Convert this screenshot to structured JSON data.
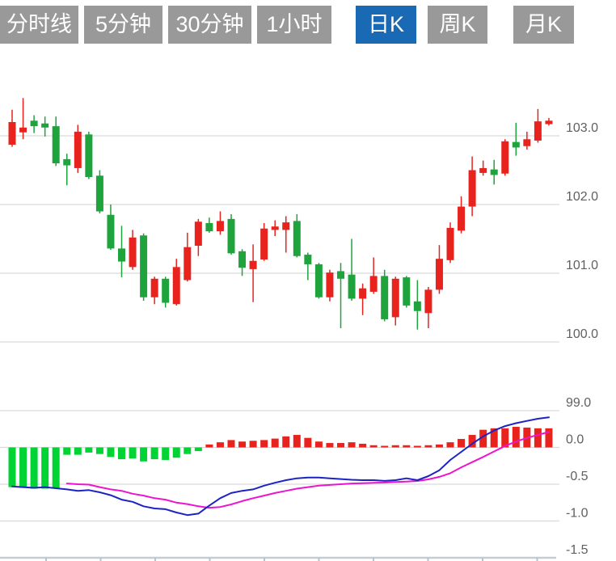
{
  "tabs": {
    "default_bg": "#999999",
    "selected_bg": "#1a69b4",
    "text_color": "#ffffff",
    "items": [
      {
        "label": "分时线",
        "selected": false
      },
      {
        "label": "5分钟",
        "selected": false
      },
      {
        "label": "30分钟",
        "selected": false
      },
      {
        "label": "1小时",
        "selected": false
      },
      {
        "label": "日K",
        "selected": true
      },
      {
        "label": "周K",
        "selected": false
      },
      {
        "label": "月K",
        "selected": false
      }
    ]
  },
  "chart_data": {
    "type": "candlestick",
    "grid_color": "#d9d9d9",
    "axis_line_color": "#c5ccd6",
    "axis_tick_color": "#b9c2cf",
    "text_color": "#606060",
    "price_panel": {
      "up_color": "#e8231e",
      "down_color": "#1fa33c",
      "axis_labels": [
        {
          "text": "103.0",
          "value": 103.0
        },
        {
          "text": "102.0",
          "value": 102.0
        },
        {
          "text": "101.0",
          "value": 101.0
        },
        {
          "text": "100.0",
          "value": 100.0
        },
        {
          "text": "99.0",
          "value": 99.0
        }
      ],
      "candles": [
        [
          102.87,
          103.38,
          102.84,
          103.2
        ],
        [
          103.05,
          103.55,
          102.95,
          103.12
        ],
        [
          103.22,
          103.3,
          103.04,
          103.14
        ],
        [
          103.18,
          103.28,
          102.99,
          103.12
        ],
        [
          103.14,
          103.28,
          102.56,
          102.6
        ],
        [
          102.66,
          102.74,
          102.28,
          102.57
        ],
        [
          102.53,
          103.16,
          102.46,
          103.06
        ],
        [
          103.02,
          103.06,
          102.37,
          102.4
        ],
        [
          102.42,
          102.5,
          101.87,
          101.9
        ],
        [
          101.85,
          102.0,
          101.34,
          101.36
        ],
        [
          101.36,
          101.69,
          100.94,
          101.17
        ],
        [
          101.09,
          101.63,
          101.05,
          101.52
        ],
        [
          101.55,
          101.58,
          100.6,
          100.65
        ],
        [
          100.65,
          100.95,
          100.55,
          100.92
        ],
        [
          100.92,
          100.95,
          100.5,
          100.57
        ],
        [
          100.55,
          101.21,
          100.53,
          101.09
        ],
        [
          100.9,
          101.59,
          100.88,
          101.38
        ],
        [
          101.4,
          101.79,
          101.25,
          101.75
        ],
        [
          101.73,
          101.81,
          101.59,
          101.61
        ],
        [
          101.61,
          101.9,
          101.56,
          101.76
        ],
        [
          101.79,
          101.86,
          101.27,
          101.29
        ],
        [
          101.32,
          101.35,
          100.96,
          101.08
        ],
        [
          101.06,
          101.42,
          100.58,
          101.18
        ],
        [
          101.2,
          101.73,
          101.18,
          101.65
        ],
        [
          101.63,
          101.77,
          101.54,
          101.68
        ],
        [
          101.63,
          101.83,
          101.3,
          101.74
        ],
        [
          101.76,
          101.86,
          101.23,
          101.25
        ],
        [
          101.27,
          101.3,
          100.9,
          101.13
        ],
        [
          101.13,
          101.15,
          100.63,
          100.65
        ],
        [
          100.65,
          101.05,
          100.59,
          101.01
        ],
        [
          101.03,
          101.15,
          100.2,
          100.92
        ],
        [
          100.98,
          101.5,
          100.6,
          100.63
        ],
        [
          100.63,
          100.85,
          100.39,
          100.78
        ],
        [
          100.73,
          101.23,
          100.7,
          100.96
        ],
        [
          100.96,
          101.05,
          100.3,
          100.33
        ],
        [
          100.36,
          100.95,
          100.24,
          100.92
        ],
        [
          100.94,
          100.96,
          100.5,
          100.53
        ],
        [
          100.59,
          100.9,
          100.18,
          100.45
        ],
        [
          100.42,
          100.8,
          100.2,
          100.76
        ],
        [
          100.76,
          101.41,
          100.7,
          101.21
        ],
        [
          101.19,
          101.74,
          101.15,
          101.66
        ],
        [
          101.62,
          102.12,
          101.58,
          101.97
        ],
        [
          101.97,
          102.7,
          101.83,
          102.5
        ],
        [
          102.46,
          102.64,
          102.42,
          102.53
        ],
        [
          102.51,
          102.65,
          102.29,
          102.43
        ],
        [
          102.45,
          102.95,
          102.42,
          102.92
        ],
        [
          102.91,
          103.19,
          102.71,
          102.83
        ],
        [
          102.85,
          103.06,
          102.8,
          102.95
        ],
        [
          102.93,
          103.39,
          102.9,
          103.21
        ],
        [
          103.17,
          103.26,
          103.15,
          103.22
        ]
      ]
    },
    "macd_panel": {
      "hist_pos_color": "#e8231e",
      "hist_neg_color": "#00d435",
      "dif_color": "#1c23c3",
      "dea_color": "#ec15cf",
      "axis_labels": [
        {
          "text": "0.0",
          "value": 0.0
        },
        {
          "text": "-0.5",
          "value": -0.5
        },
        {
          "text": "-1.0",
          "value": -1.0
        },
        {
          "text": "-1.5",
          "value": -1.5
        }
      ],
      "hist": [
        -0.54,
        -0.55,
        -0.56,
        -0.56,
        -0.55,
        -0.1,
        -0.1,
        -0.07,
        -0.09,
        -0.13,
        -0.16,
        -0.15,
        -0.19,
        -0.16,
        -0.17,
        -0.14,
        -0.09,
        -0.05,
        0.04,
        0.07,
        0.1,
        0.08,
        0.09,
        0.1,
        0.12,
        0.15,
        0.17,
        0.13,
        0.08,
        0.06,
        0.06,
        0.07,
        0.05,
        0.03,
        0.02,
        0.03,
        0.03,
        0.02,
        0.03,
        0.04,
        0.07,
        0.115,
        0.17,
        0.24,
        0.26,
        0.26,
        0.28,
        0.27,
        0.26,
        0.26
      ],
      "dif": [
        -0.53,
        -0.54,
        -0.55,
        -0.54,
        -0.555,
        -0.57,
        -0.59,
        -0.58,
        -0.61,
        -0.65,
        -0.71,
        -0.74,
        -0.8,
        -0.83,
        -0.84,
        -0.885,
        -0.92,
        -0.9,
        -0.79,
        -0.69,
        -0.62,
        -0.59,
        -0.57,
        -0.52,
        -0.48,
        -0.445,
        -0.42,
        -0.41,
        -0.41,
        -0.42,
        -0.43,
        -0.44,
        -0.445,
        -0.445,
        -0.455,
        -0.445,
        -0.42,
        -0.445,
        -0.39,
        -0.31,
        -0.17,
        -0.06,
        0.05,
        0.15,
        0.23,
        0.29,
        0.33,
        0.36,
        0.39,
        0.41
      ],
      "dea": [
        null,
        null,
        null,
        null,
        null,
        -0.49,
        -0.5,
        -0.505,
        -0.54,
        -0.57,
        -0.59,
        -0.63,
        -0.655,
        -0.69,
        -0.71,
        -0.75,
        -0.77,
        -0.8,
        -0.82,
        -0.81,
        -0.775,
        -0.73,
        -0.69,
        -0.655,
        -0.62,
        -0.59,
        -0.56,
        -0.54,
        -0.52,
        -0.51,
        -0.5,
        -0.49,
        -0.486,
        -0.48,
        -0.478,
        -0.47,
        -0.464,
        -0.456,
        -0.434,
        -0.4,
        -0.35,
        -0.27,
        -0.2,
        -0.13,
        -0.055,
        0.02,
        0.08,
        0.13,
        0.17,
        0.21
      ]
    },
    "price_extra_label": {
      "text": "99.0",
      "value": 99.0
    }
  }
}
